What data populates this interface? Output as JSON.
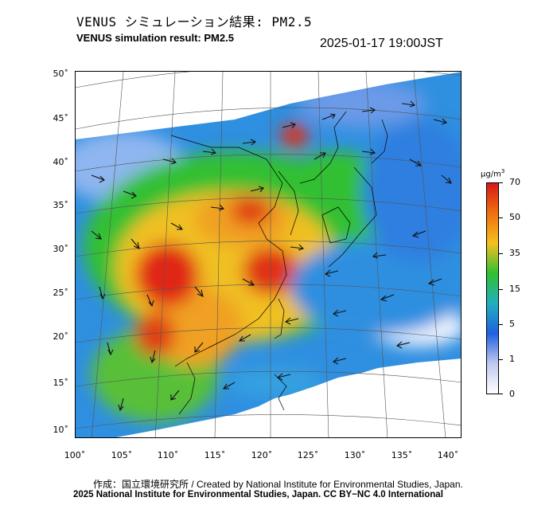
{
  "header": {
    "title_jp": "VENUS シミュレーション結果: PM2.5",
    "title_en": "VENUS simulation result: PM2.5",
    "timestamp": "2025-01-17 19:00JST"
  },
  "map": {
    "lat_labels": [
      "50˚",
      "45˚",
      "40˚",
      "35˚",
      "30˚",
      "25˚",
      "20˚",
      "15˚",
      "10˚"
    ],
    "lon_labels": [
      "100˚",
      "105˚",
      "110˚",
      "115˚",
      "120˚",
      "125˚",
      "130˚",
      "135˚",
      "140˚"
    ],
    "overlay": "PM2.5 concentration with wind vectors"
  },
  "colorbar": {
    "unit_base": "μg/m",
    "unit_sup": "3",
    "ticks": [
      "70",
      "50",
      "35",
      "15",
      "5",
      "1",
      "0"
    ],
    "colors": [
      "#d81818",
      "#f07010",
      "#f5c020",
      "#30c030",
      "#20b0c0",
      "#2060e0",
      "#c0c8f0",
      "#ffffff"
    ]
  },
  "footer": {
    "credit_jp": "作成：国立環境研究所 / Created by National Institute for Environmental Studies, Japan.",
    "credit_en": "2025 National Institute for Environmental Studies, Japan. CC BY−NC 4.0 International"
  }
}
